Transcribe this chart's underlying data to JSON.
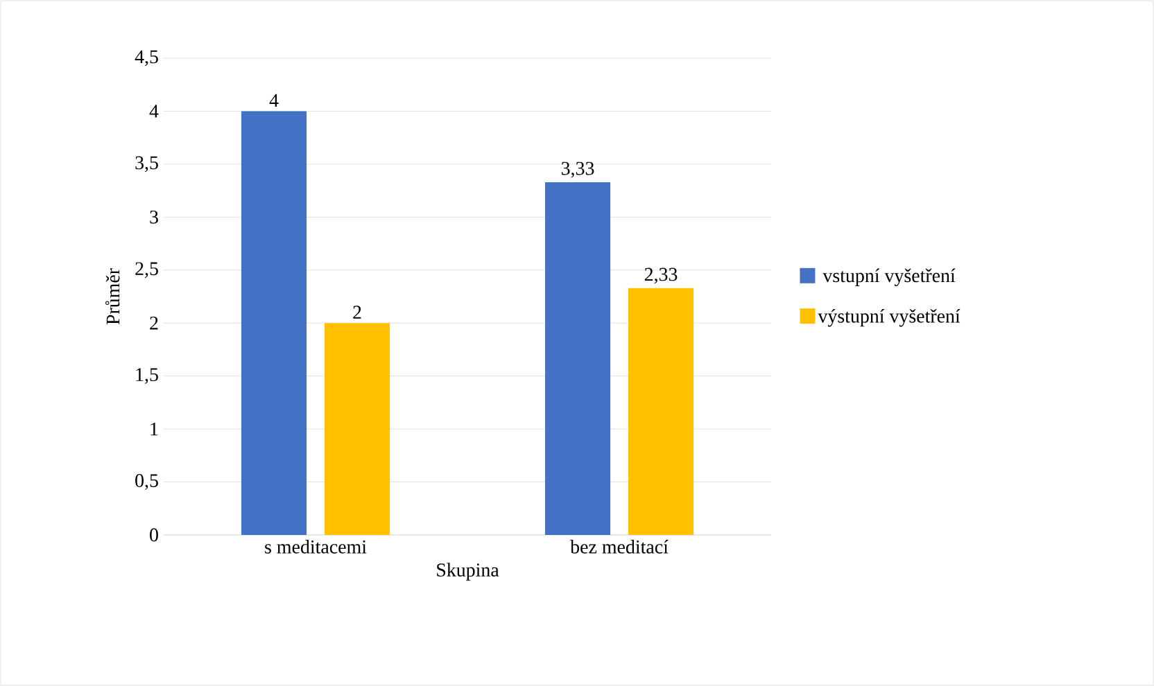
{
  "chart_data": {
    "type": "bar",
    "xlabel": "Skupina",
    "ylabel": "Průměr",
    "categories": [
      "s meditacemi",
      "bez meditací"
    ],
    "series": [
      {
        "name": "vstupní vyšetření",
        "color": "#4472c4",
        "values": [
          4,
          3.33
        ],
        "value_labels": [
          "4",
          "3,33"
        ]
      },
      {
        "name": "výstupní vyšetření",
        "color": "#ffc000",
        "values": [
          2,
          2.33
        ],
        "value_labels": [
          "2",
          "2,33"
        ]
      }
    ],
    "ylim": [
      0,
      4.5
    ],
    "yticks": [
      0,
      {
        "value": 0.5,
        "label": "0,5"
      },
      1,
      {
        "value": 1.5,
        "label": "1,5"
      },
      2,
      {
        "value": 2.5,
        "label": "2,5"
      },
      3,
      {
        "value": 3.5,
        "label": "3,5"
      },
      4,
      {
        "value": 4.5,
        "label": "4,5"
      }
    ],
    "grid": "y",
    "legend": "right"
  }
}
